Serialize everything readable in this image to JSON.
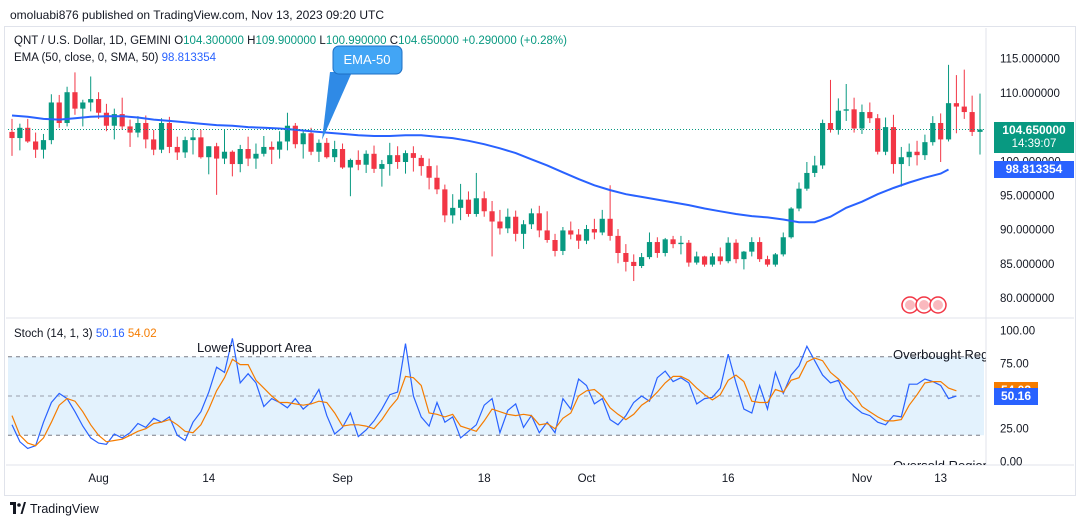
{
  "header": {
    "publisher": "omoluabi876 published on TradingView.com, Nov 13, 2023 09:20 UTC"
  },
  "legend": {
    "symbol": "QNT / U.S. Dollar, 1D, GEMINI",
    "o_label": "O",
    "open": "104.300000",
    "h_label": "H",
    "high": "109.900000",
    "l_label": "L",
    "low": "100.990000",
    "c_label": "C",
    "close": "104.650000",
    "change": "+0.290000 (+0.28%)",
    "ema_label": "EMA (50, close, 0, SMA, 50)",
    "ema_value": "98.813354",
    "stoch_label": "Stoch (14, 1, 3)",
    "stoch_k": "50.16",
    "stoch_d": "54.02"
  },
  "annotations": {
    "ema_callout": "EMA-50",
    "lower_support": "Lower Support Area",
    "overbought": "Overbought Region",
    "oversold": "Oversold Region"
  },
  "price_tags": {
    "price": "104.650000",
    "countdown": "14:39:07",
    "ema": "98.813354",
    "stoch_d": "54.02",
    "stoch_k": "50.16"
  },
  "footer": {
    "brand": "TradingView"
  },
  "colors": {
    "up": "#089981",
    "down": "#f23645",
    "ema": "#2962ff",
    "stoch_k": "#2962ff",
    "stoch_d": "#f57c00",
    "band": "#e3f2fd"
  },
  "chart_data": [
    {
      "type": "candlestick",
      "title": "QNT / U.S. Dollar, 1D, GEMINI",
      "ylim": [
        79,
        117
      ],
      "y_ticks": [
        "115.000000",
        "110.000000",
        "105.000000",
        "100.000000",
        "95.000000",
        "90.000000",
        "85.000000",
        "80.000000"
      ],
      "x_ticks": [
        "Aug",
        "14",
        "Sep",
        "18",
        "Oct",
        "16",
        "Nov",
        "13"
      ],
      "x_tick_index": [
        11,
        25,
        42,
        60,
        73,
        91,
        108,
        118
      ],
      "ohlc": [
        [
          104.3,
          106.2,
          100.8,
          103.4
        ],
        [
          103.4,
          105.5,
          101.6,
          104.9
        ],
        [
          104.9,
          106.2,
          102.7,
          102.9
        ],
        [
          102.9,
          104.2,
          100.5,
          101.7
        ],
        [
          101.7,
          104.0,
          100.4,
          103.1
        ],
        [
          103.1,
          109.8,
          102.5,
          108.6
        ],
        [
          108.6,
          109.7,
          104.9,
          105.6
        ],
        [
          105.6,
          110.9,
          105.1,
          110.1
        ],
        [
          110.1,
          113.0,
          106.8,
          107.7
        ],
        [
          107.7,
          109.0,
          105.1,
          108.6
        ],
        [
          108.6,
          112.4,
          107.3,
          109.1
        ],
        [
          109.1,
          110.1,
          106.2,
          107.1
        ],
        [
          107.1,
          108.4,
          104.4,
          105.2
        ],
        [
          105.2,
          107.7,
          103.2,
          106.9
        ],
        [
          106.9,
          109.3,
          104.6,
          105.1
        ],
        [
          105.1,
          106.1,
          102.1,
          104.2
        ],
        [
          104.2,
          106.6,
          103.5,
          105.6
        ],
        [
          105.6,
          106.7,
          101.9,
          103.2
        ],
        [
          103.2,
          104.6,
          100.9,
          101.7
        ],
        [
          101.7,
          106.3,
          101.2,
          105.6
        ],
        [
          105.6,
          106.5,
          101.2,
          102.1
        ],
        [
          102.1,
          103.6,
          100.2,
          101.3
        ],
        [
          101.3,
          103.6,
          100.5,
          103.1
        ],
        [
          103.1,
          104.8,
          101.0,
          103.5
        ],
        [
          103.5,
          104.6,
          100.4,
          100.6
        ],
        [
          100.6,
          102.2,
          98.1,
          102.2
        ],
        [
          102.2,
          102.7,
          95.1,
          100.4
        ],
        [
          100.4,
          104.7,
          99.6,
          101.4
        ],
        [
          101.4,
          101.6,
          97.8,
          99.6
        ],
        [
          99.6,
          102.4,
          98.4,
          101.8
        ],
        [
          101.8,
          103.6,
          99.3,
          100.4
        ],
        [
          100.4,
          102.6,
          98.9,
          101.1
        ],
        [
          101.1,
          103.7,
          100.7,
          102.1
        ],
        [
          102.1,
          102.9,
          99.6,
          101.7
        ],
        [
          101.7,
          104.4,
          100.4,
          102.9
        ],
        [
          102.9,
          107.1,
          101.6,
          105.2
        ],
        [
          105.2,
          105.6,
          101.9,
          102.5
        ],
        [
          102.5,
          104.5,
          100.4,
          104.1
        ],
        [
          104.1,
          104.9,
          100.9,
          101.4
        ],
        [
          101.4,
          103.2,
          99.9,
          102.7
        ],
        [
          102.7,
          103.4,
          100.4,
          100.6
        ],
        [
          100.6,
          103.0,
          99.9,
          101.8
        ],
        [
          101.8,
          102.6,
          98.9,
          99.1
        ],
        [
          99.1,
          100.4,
          94.9,
          100.2
        ],
        [
          100.2,
          101.6,
          98.7,
          99.5
        ],
        [
          99.5,
          101.6,
          98.3,
          101.1
        ],
        [
          101.1,
          102.3,
          98.3,
          98.9
        ],
        [
          98.9,
          100.2,
          96.3,
          99.6
        ],
        [
          99.6,
          102.7,
          97.9,
          100.9
        ],
        [
          100.9,
          102.2,
          98.9,
          99.9
        ],
        [
          99.9,
          101.6,
          98.2,
          101.2
        ],
        [
          101.2,
          102.2,
          98.5,
          100.5
        ],
        [
          100.5,
          100.9,
          97.9,
          99.3
        ],
        [
          99.3,
          100.4,
          95.9,
          97.6
        ],
        [
          97.6,
          99.4,
          95.2,
          95.9
        ],
        [
          95.9,
          96.6,
          91.1,
          92.1
        ],
        [
          92.1,
          95.2,
          90.9,
          93.2
        ],
        [
          93.2,
          96.7,
          91.4,
          94.4
        ],
        [
          94.4,
          95.6,
          91.9,
          92.3
        ],
        [
          92.3,
          98.3,
          91.9,
          94.6
        ],
        [
          94.6,
          95.6,
          91.9,
          92.7
        ],
        [
          92.7,
          94.2,
          86.1,
          91.2
        ],
        [
          91.2,
          92.9,
          89.3,
          90.2
        ],
        [
          90.2,
          93.1,
          89.5,
          91.9
        ],
        [
          91.9,
          92.8,
          88.3,
          89.4
        ],
        [
          89.4,
          91.4,
          87.2,
          90.8
        ],
        [
          90.8,
          93.1,
          90.1,
          92.4
        ],
        [
          92.4,
          93.5,
          88.9,
          89.9
        ],
        [
          89.9,
          92.7,
          88.1,
          88.5
        ],
        [
          88.5,
          89.4,
          86.1,
          86.9
        ],
        [
          86.9,
          90.4,
          86.3,
          89.9
        ],
        [
          89.9,
          91.2,
          88.6,
          89.3
        ],
        [
          89.3,
          90.1,
          87.2,
          88.4
        ],
        [
          88.4,
          90.7,
          87.9,
          90.1
        ],
        [
          90.1,
          91.6,
          88.6,
          89.6
        ],
        [
          89.6,
          92.9,
          89.2,
          91.6
        ],
        [
          91.6,
          96.5,
          88.4,
          89.1
        ],
        [
          89.1,
          90.1,
          85.1,
          86.6
        ],
        [
          86.6,
          87.9,
          83.9,
          85.3
        ],
        [
          85.3,
          86.4,
          82.5,
          84.7
        ],
        [
          84.7,
          86.6,
          84.4,
          86.0
        ],
        [
          86.0,
          89.6,
          85.7,
          88.2
        ],
        [
          88.2,
          88.9,
          85.9,
          86.6
        ],
        [
          86.6,
          88.8,
          86.1,
          88.6
        ],
        [
          88.6,
          89.1,
          87.3,
          87.9
        ],
        [
          87.9,
          89.1,
          86.4,
          88.1
        ],
        [
          88.1,
          88.5,
          84.6,
          85.2
        ],
        [
          85.2,
          86.8,
          84.9,
          86.1
        ],
        [
          86.1,
          86.2,
          84.6,
          84.9
        ],
        [
          84.9,
          86.6,
          84.6,
          86.1
        ],
        [
          86.1,
          87.4,
          84.9,
          85.4
        ],
        [
          85.4,
          88.9,
          85.1,
          88.1
        ],
        [
          88.1,
          88.6,
          85.1,
          85.7
        ],
        [
          85.7,
          86.9,
          84.2,
          86.8
        ],
        [
          86.8,
          88.9,
          86.1,
          88.2
        ],
        [
          88.2,
          88.9,
          85.3,
          85.7
        ],
        [
          85.7,
          86.2,
          84.6,
          84.9
        ],
        [
          84.9,
          86.6,
          84.6,
          86.4
        ],
        [
          86.4,
          89.6,
          86.1,
          88.9
        ],
        [
          88.9,
          93.3,
          88.7,
          93.1
        ],
        [
          93.1,
          96.9,
          92.7,
          96.0
        ],
        [
          96.0,
          99.9,
          95.7,
          98.3
        ],
        [
          98.3,
          100.8,
          97.7,
          99.4
        ],
        [
          99.4,
          106.1,
          98.9,
          105.6
        ],
        [
          105.6,
          111.9,
          104.2,
          104.6
        ],
        [
          104.6,
          109.2,
          103.9,
          107.4
        ],
        [
          107.4,
          111.3,
          105.9,
          107.6
        ],
        [
          107.6,
          109.3,
          104.2,
          104.8
        ],
        [
          104.8,
          108.3,
          104.0,
          107.2
        ],
        [
          107.2,
          108.6,
          105.6,
          106.3
        ],
        [
          106.3,
          106.9,
          101.0,
          101.4
        ],
        [
          101.4,
          106.4,
          100.9,
          105.0
        ],
        [
          105.0,
          106.8,
          98.2,
          99.6
        ],
        [
          99.6,
          102.1,
          96.3,
          100.6
        ],
        [
          100.6,
          102.6,
          99.3,
          101.4
        ],
        [
          101.4,
          103.0,
          99.4,
          100.9
        ],
        [
          100.9,
          103.9,
          100.2,
          102.8
        ],
        [
          102.8,
          106.6,
          102.3,
          105.6
        ],
        [
          105.6,
          107.0,
          99.9,
          103.2
        ],
        [
          103.2,
          114.1,
          102.9,
          108.5
        ],
        [
          108.5,
          112.6,
          104.1,
          108.0
        ],
        [
          108.0,
          113.4,
          106.2,
          107.2
        ],
        [
          107.2,
          109.6,
          103.7,
          104.3
        ],
        [
          104.3,
          109.9,
          100.99,
          104.65
        ]
      ],
      "ema50": [
        106.7,
        106.5,
        106.2,
        106.1,
        106.3,
        106.5,
        106.6,
        106.6,
        106.4,
        106.1,
        105.9,
        105.7,
        105.5,
        105.3,
        105.2,
        105.0,
        104.9,
        104.8,
        104.6,
        104.4,
        104.2,
        104.0,
        103.8,
        103.7,
        103.7,
        103.8,
        103.8,
        103.6,
        103.4,
        103.0,
        102.5,
        101.9,
        101.2,
        100.3,
        99.4,
        98.4,
        97.4,
        96.5,
        95.8,
        95.2,
        94.8,
        94.4,
        94.0,
        93.6,
        93.1,
        92.7,
        92.3,
        92.0,
        91.8,
        91.5,
        91.1,
        91.1,
        91.9,
        93.2,
        94.1,
        95.2,
        96.1,
        96.9,
        97.6,
        98.2,
        98.81
      ],
      "ema50_x_index": [
        0,
        2,
        4,
        6,
        8,
        10,
        12,
        14,
        16,
        18,
        20,
        22,
        24,
        26,
        28,
        30,
        32,
        34,
        36,
        38,
        40,
        42,
        44,
        46,
        48,
        50,
        52,
        54,
        56,
        58,
        60,
        62,
        64,
        66,
        68,
        70,
        72,
        74,
        76,
        78,
        80,
        82,
        84,
        86,
        88,
        90,
        92,
        94,
        96,
        98,
        100,
        102,
        104,
        106,
        108,
        110,
        112,
        114,
        116,
        118,
        119
      ]
    },
    {
      "type": "line",
      "title": "Stoch (14, 1, 3)",
      "ylim": [
        -5,
        105
      ],
      "y_ticks": [
        "100.00",
        "75.00",
        "50.00",
        "25.00",
        "0.00"
      ],
      "levels": {
        "upper": 80,
        "middle": 50,
        "lower": 20
      },
      "series": [
        {
          "name": "%K",
          "values": [
            28,
            15,
            10,
            12,
            30,
            45,
            52,
            48,
            38,
            27,
            18,
            14,
            13,
            21,
            18,
            22,
            29,
            26,
            33,
            30,
            34,
            20,
            16,
            30,
            38,
            53,
            72,
            68,
            94,
            60,
            67,
            60,
            42,
            48,
            45,
            41,
            48,
            40,
            45,
            55,
            35,
            21,
            26,
            37,
            19,
            24,
            31,
            40,
            51,
            53,
            90,
            50,
            34,
            27,
            45,
            30,
            34,
            18,
            23,
            28,
            43,
            48,
            22,
            39,
            44,
            26,
            35,
            22,
            30,
            22,
            48,
            40,
            63,
            58,
            44,
            48,
            32,
            28,
            35,
            45,
            50,
            46,
            64,
            69,
            61,
            64,
            60,
            44,
            48,
            49,
            56,
            82,
            60,
            40,
            37,
            58,
            40,
            68,
            52,
            66,
            73,
            88,
            77,
            66,
            60,
            62,
            48,
            42,
            37,
            35,
            30,
            28,
            35,
            34,
            59,
            59,
            63,
            61,
            58,
            48,
            50
          ]
        },
        {
          "name": "%D",
          "values": [
            35,
            20,
            14,
            12,
            18,
            30,
            43,
            48,
            46,
            38,
            28,
            20,
            15,
            16,
            17,
            20,
            23,
            25,
            29,
            30,
            32,
            28,
            23,
            22,
            28,
            40,
            54,
            64,
            78,
            74,
            74,
            62,
            56,
            50,
            45,
            45,
            44,
            43,
            44,
            46,
            45,
            37,
            27,
            28,
            28,
            27,
            25,
            32,
            41,
            48,
            65,
            64,
            58,
            37,
            36,
            34,
            36,
            27,
            25,
            23,
            31,
            40,
            38,
            36,
            35,
            36,
            35,
            28,
            29,
            25,
            33,
            37,
            50,
            54,
            55,
            50,
            41,
            36,
            32,
            36,
            43,
            47,
            53,
            60,
            65,
            65,
            62,
            56,
            51,
            47,
            51,
            62,
            66,
            61,
            46,
            45,
            45,
            55,
            53,
            62,
            64,
            76,
            79,
            77,
            68,
            63,
            57,
            51,
            42,
            38,
            34,
            31,
            31,
            32,
            43,
            51,
            60,
            61,
            61,
            56,
            54
          ]
        }
      ]
    }
  ]
}
